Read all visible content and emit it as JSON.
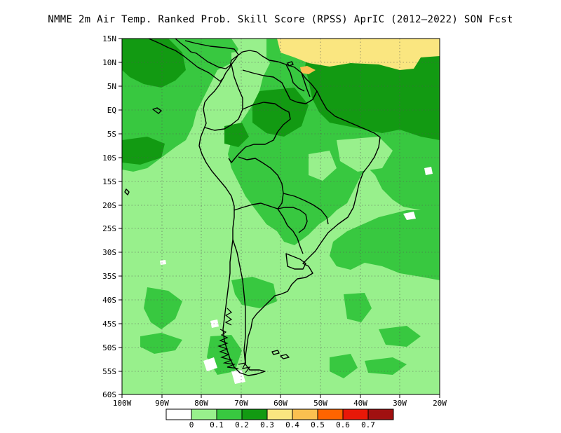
{
  "title": "NMME  2m Air Temp. Ranked Prob. Skill Score (RPSS) AprIC (2012–2022) SON Fcst",
  "lat_labels": [
    "15N",
    "10N",
    "5N",
    "EQ",
    "5S",
    "10S",
    "15S",
    "20S",
    "25S",
    "30S",
    "35S",
    "40S",
    "45S",
    "50S",
    "55S",
    "60S"
  ],
  "lon_labels": [
    "100W",
    "90W",
    "80W",
    "70W",
    "60W",
    "50W",
    "40W",
    "30W",
    "20W"
  ],
  "colorbar": {
    "labels": [
      "0",
      "0.1",
      "0.2",
      "0.3",
      "0.4",
      "0.5",
      "0.6",
      "0.7"
    ],
    "colors": [
      "#ffffff",
      "#98f08c",
      "#38c840",
      "#129a12",
      "#fae680",
      "#fac050",
      "#ff6400",
      "#e81808",
      "#a01010"
    ]
  },
  "colors": {
    "light_green": "#98f08c",
    "mid_green": "#38c840",
    "dark_green": "#129a12",
    "yellow": "#fae680",
    "orange": "#fac050"
  }
}
